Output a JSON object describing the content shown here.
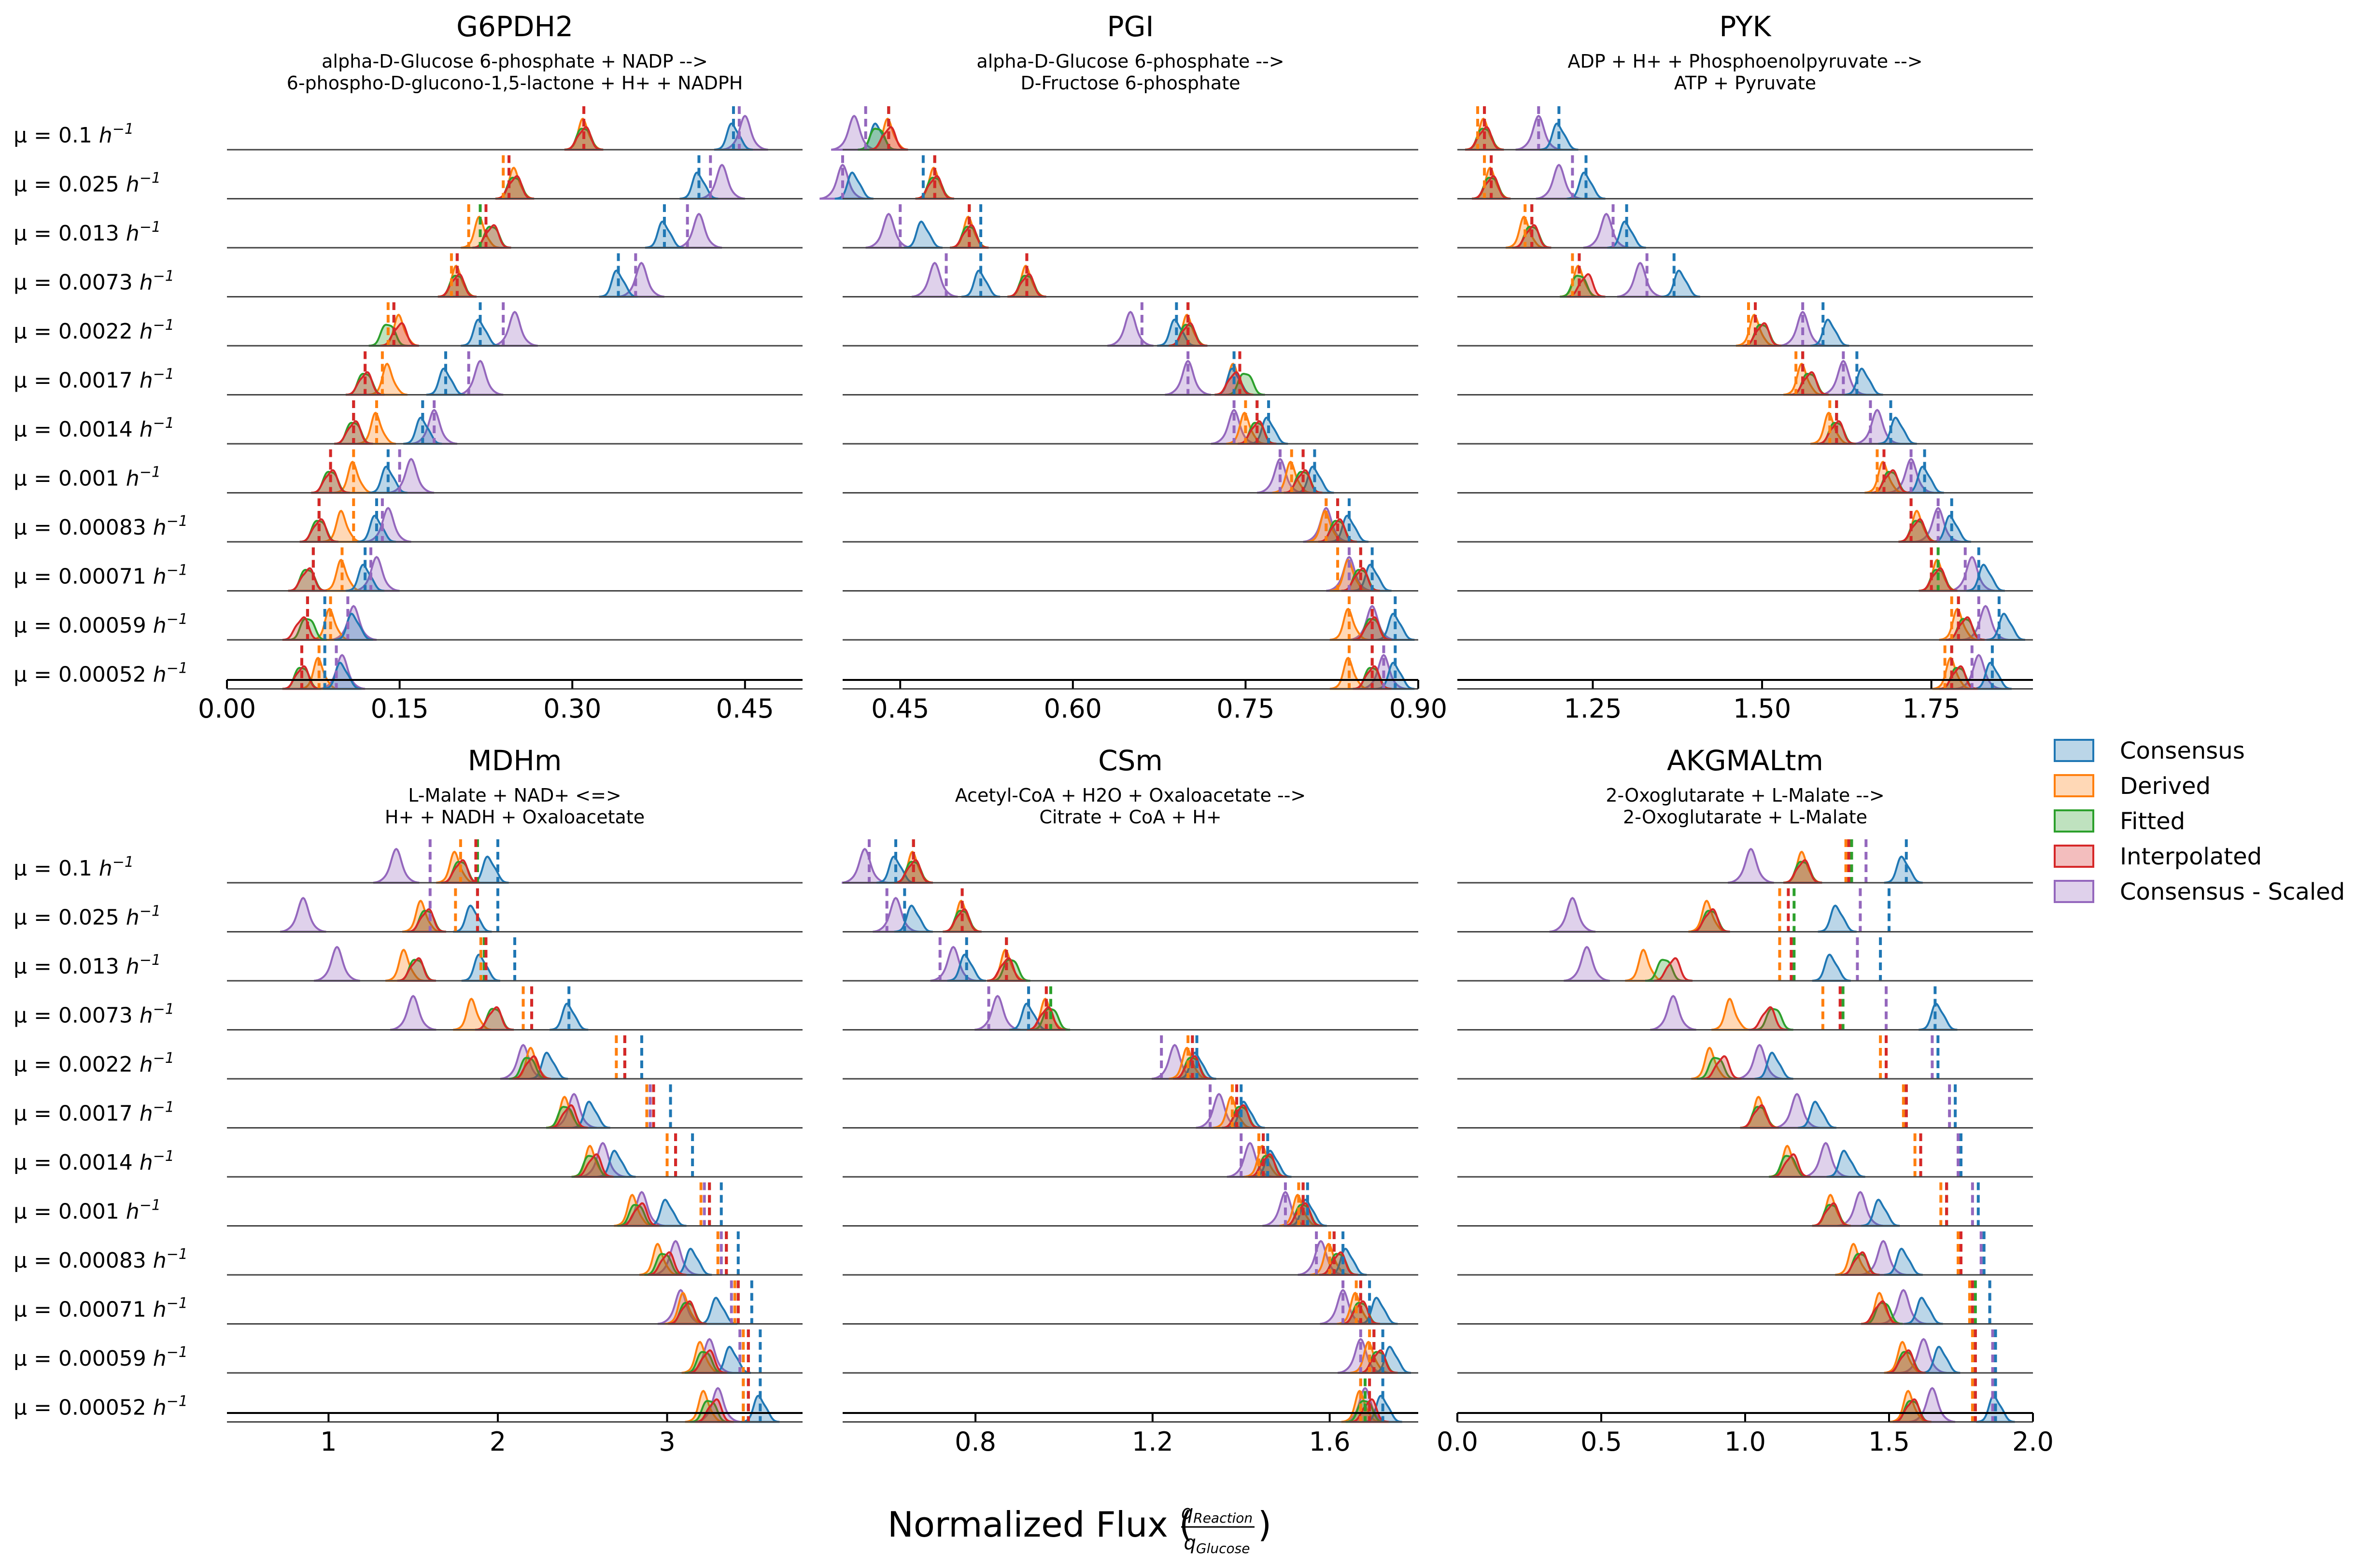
{
  "figure": {
    "xlabel": "Normalized Flux (",
    "xlabel_num": "q",
    "xlabel_num_sub": "Reaction",
    "xlabel_den": "q",
    "xlabel_den_sub": "Glucose",
    "xlabel_close": ")"
  },
  "legend": {
    "placement": "right",
    "entries": [
      {
        "name": "Consensus",
        "color": "#1f77b4"
      },
      {
        "name": "Derived",
        "color": "#ff7f0e"
      },
      {
        "name": "Fitted",
        "color": "#2ca02c"
      },
      {
        "name": "Interpolated",
        "color": "#d62728"
      },
      {
        "name": "Consensus - Scaled",
        "color": "#9467bd"
      }
    ]
  },
  "rows": [
    {
      "mu": "0.1"
    },
    {
      "mu": "0.025"
    },
    {
      "mu": "0.013"
    },
    {
      "mu": "0.0073"
    },
    {
      "mu": "0.0022"
    },
    {
      "mu": "0.0017"
    },
    {
      "mu": "0.0014"
    },
    {
      "mu": "0.001"
    },
    {
      "mu": "0.00083"
    },
    {
      "mu": "0.00071"
    },
    {
      "mu": "0.00059"
    },
    {
      "mu": "0.00052"
    }
  ],
  "row_label_prefix": "μ = ",
  "row_label_unit": "h",
  "row_label_exp": "−1",
  "chart_data": [
    {
      "type": "ridgeline-density",
      "title": "G6PDH2",
      "subtitle": [
        "alpha-D-Glucose 6-phosphate + NADP -->",
        "6-phospho-D-glucono-1,5-lactone + H+ + NADPH"
      ],
      "xlim": [
        0.0,
        0.5
      ],
      "ticks": [
        0.0,
        0.15,
        0.3,
        0.45
      ],
      "tick_labels": [
        "0.00",
        "0.15",
        "0.30",
        "0.45"
      ],
      "series_peaks": {
        "Consensus": [
          0.44,
          0.41,
          0.38,
          0.34,
          0.22,
          0.19,
          0.17,
          0.14,
          0.13,
          0.12,
          0.11,
          0.1
        ],
        "Derived": [
          0.31,
          0.25,
          0.22,
          0.2,
          0.15,
          0.14,
          0.13,
          0.11,
          0.1,
          0.1,
          0.09,
          0.08
        ],
        "Fitted": [
          0.31,
          0.25,
          0.23,
          0.2,
          0.14,
          0.12,
          0.11,
          0.09,
          0.08,
          0.07,
          0.07,
          0.065
        ],
        "Interpolated": [
          0.31,
          0.25,
          0.23,
          0.2,
          0.15,
          0.12,
          0.11,
          0.09,
          0.08,
          0.07,
          0.065,
          0.065
        ],
        "Consensus - Scaled": [
          0.45,
          0.43,
          0.41,
          0.36,
          0.25,
          0.22,
          0.18,
          0.16,
          0.14,
          0.13,
          0.11,
          0.1
        ]
      },
      "series_means": {
        "Consensus": [
          0.44,
          0.41,
          0.38,
          0.34,
          0.22,
          0.19,
          0.17,
          0.14,
          0.13,
          0.12,
          0.085,
          0.085
        ],
        "Derived": [
          0.31,
          0.24,
          0.21,
          0.195,
          0.14,
          0.135,
          0.13,
          0.11,
          0.11,
          0.1,
          0.09,
          0.08
        ],
        "Fitted": [
          0.31,
          0.245,
          0.22,
          0.2,
          0.145,
          0.12,
          0.11,
          0.09,
          0.08,
          0.075,
          0.07,
          0.065
        ],
        "Interpolated": [
          0.31,
          0.245,
          0.225,
          0.2,
          0.145,
          0.12,
          0.11,
          0.09,
          0.08,
          0.075,
          0.07,
          0.065
        ],
        "Consensus - Scaled": [
          0.445,
          0.42,
          0.4,
          0.355,
          0.24,
          0.21,
          0.18,
          0.15,
          0.135,
          0.125,
          0.105,
          0.095
        ]
      }
    },
    {
      "type": "ridgeline-density",
      "title": "PGI",
      "subtitle": [
        "alpha-D-Glucose 6-phosphate -->",
        "D-Fructose 6-phosphate"
      ],
      "xlim": [
        0.4,
        0.9
      ],
      "ticks": [
        0.45,
        0.6,
        0.75,
        0.9
      ],
      "tick_labels": [
        "0.45",
        "0.60",
        "0.75",
        "0.90"
      ],
      "series_peaks": {
        "Consensus": [
          0.43,
          0.41,
          0.47,
          0.52,
          0.69,
          0.74,
          0.77,
          0.81,
          0.84,
          0.86,
          0.88,
          0.88
        ],
        "Derived": [
          0.44,
          0.48,
          0.51,
          0.56,
          0.7,
          0.74,
          0.75,
          0.79,
          0.82,
          0.84,
          0.84,
          0.84
        ],
        "Fitted": [
          0.43,
          0.48,
          0.51,
          0.56,
          0.7,
          0.75,
          0.76,
          0.8,
          0.83,
          0.85,
          0.86,
          0.86
        ],
        "Interpolated": [
          0.44,
          0.48,
          0.51,
          0.56,
          0.7,
          0.74,
          0.76,
          0.8,
          0.83,
          0.85,
          0.86,
          0.86
        ],
        "Consensus - Scaled": [
          0.41,
          0.4,
          0.44,
          0.48,
          0.65,
          0.7,
          0.74,
          0.78,
          0.82,
          0.84,
          0.86,
          0.87
        ]
      },
      "series_means": {
        "Consensus": [
          0.44,
          0.47,
          0.52,
          0.52,
          0.69,
          0.74,
          0.77,
          0.81,
          0.84,
          0.86,
          0.88,
          0.88
        ],
        "Derived": [
          0.44,
          0.48,
          0.51,
          0.56,
          0.7,
          0.74,
          0.75,
          0.79,
          0.82,
          0.83,
          0.84,
          0.84
        ],
        "Fitted": [
          0.44,
          0.48,
          0.51,
          0.56,
          0.7,
          0.745,
          0.76,
          0.8,
          0.83,
          0.85,
          0.86,
          0.86
        ],
        "Interpolated": [
          0.44,
          0.48,
          0.51,
          0.56,
          0.7,
          0.745,
          0.76,
          0.8,
          0.83,
          0.85,
          0.86,
          0.86
        ],
        "Consensus - Scaled": [
          0.42,
          0.4,
          0.45,
          0.49,
          0.66,
          0.7,
          0.74,
          0.78,
          0.82,
          0.84,
          0.86,
          0.87
        ]
      }
    },
    {
      "type": "ridgeline-density",
      "title": "PYK",
      "subtitle": [
        "ADP + H+ + Phosphoenolpyruvate -->",
        "ATP + Pyruvate"
      ],
      "xlim": [
        1.05,
        1.9
      ],
      "ticks": [
        1.25,
        1.5,
        1.75
      ],
      "tick_labels": [
        "1.25",
        "1.50",
        "1.75"
      ],
      "series_peaks": {
        "Consensus": [
          1.2,
          1.24,
          1.3,
          1.38,
          1.6,
          1.65,
          1.7,
          1.74,
          1.78,
          1.83,
          1.86,
          1.84
        ],
        "Derived": [
          1.09,
          1.1,
          1.15,
          1.23,
          1.49,
          1.56,
          1.6,
          1.68,
          1.73,
          1.76,
          1.79,
          1.78
        ],
        "Fitted": [
          1.09,
          1.1,
          1.16,
          1.23,
          1.5,
          1.57,
          1.61,
          1.69,
          1.73,
          1.76,
          1.8,
          1.79
        ],
        "Interpolated": [
          1.09,
          1.1,
          1.16,
          1.24,
          1.5,
          1.57,
          1.61,
          1.69,
          1.73,
          1.76,
          1.8,
          1.79
        ],
        "Consensus - Scaled": [
          1.17,
          1.2,
          1.27,
          1.32,
          1.56,
          1.62,
          1.67,
          1.72,
          1.76,
          1.81,
          1.83,
          1.82
        ]
      },
      "series_means": {
        "Consensus": [
          1.2,
          1.24,
          1.3,
          1.37,
          1.59,
          1.64,
          1.69,
          1.74,
          1.78,
          1.82,
          1.85,
          1.84
        ],
        "Derived": [
          1.08,
          1.09,
          1.15,
          1.22,
          1.48,
          1.55,
          1.6,
          1.67,
          1.72,
          1.75,
          1.78,
          1.77
        ],
        "Fitted": [
          1.09,
          1.1,
          1.16,
          1.23,
          1.49,
          1.56,
          1.61,
          1.68,
          1.72,
          1.76,
          1.79,
          1.78
        ],
        "Interpolated": [
          1.09,
          1.1,
          1.16,
          1.23,
          1.49,
          1.56,
          1.61,
          1.68,
          1.72,
          1.75,
          1.79,
          1.78
        ],
        "Consensus - Scaled": [
          1.17,
          1.22,
          1.28,
          1.33,
          1.56,
          1.62,
          1.66,
          1.72,
          1.76,
          1.8,
          1.82,
          1.81
        ]
      }
    },
    {
      "type": "ridgeline-density",
      "title": "MDHm",
      "subtitle": [
        "L-Malate + NAD+ <=>",
        "H+ + NADH + Oxaloacetate"
      ],
      "xlim": [
        0.4,
        3.8
      ],
      "ticks": [
        1,
        2,
        3
      ],
      "tick_labels": [
        "1",
        "2",
        "3"
      ],
      "series_peaks": {
        "Consensus": [
          1.95,
          1.85,
          1.9,
          2.42,
          2.3,
          2.55,
          2.7,
          3.0,
          3.15,
          3.3,
          3.38,
          3.55
        ],
        "Derived": [
          1.75,
          1.55,
          1.45,
          1.85,
          2.2,
          2.4,
          2.55,
          2.8,
          2.95,
          3.1,
          3.2,
          3.22
        ],
        "Fitted": [
          1.78,
          1.58,
          1.52,
          1.98,
          2.18,
          2.4,
          2.55,
          2.82,
          2.98,
          3.12,
          3.22,
          3.25
        ],
        "Interpolated": [
          1.78,
          1.58,
          1.52,
          1.98,
          2.2,
          2.42,
          2.57,
          2.84,
          3.0,
          3.12,
          3.24,
          3.28
        ],
        "Consensus - Scaled": [
          1.4,
          0.85,
          1.05,
          1.5,
          2.15,
          2.45,
          2.62,
          2.85,
          3.05,
          3.08,
          3.25,
          3.3
        ]
      },
      "series_means": {
        "Consensus": [
          2.0,
          2.0,
          2.1,
          2.42,
          2.85,
          3.02,
          3.15,
          3.32,
          3.42,
          3.5,
          3.55,
          3.55
        ],
        "Derived": [
          1.78,
          1.75,
          1.9,
          2.15,
          2.7,
          2.88,
          3.0,
          3.2,
          3.3,
          3.4,
          3.45,
          3.45
        ],
        "Fitted": [
          1.88,
          1.88,
          1.92,
          2.2,
          2.75,
          2.92,
          3.05,
          3.25,
          3.35,
          3.42,
          3.48,
          3.48
        ],
        "Interpolated": [
          1.87,
          1.88,
          1.93,
          2.2,
          2.75,
          2.92,
          3.05,
          3.25,
          3.35,
          3.42,
          3.48,
          3.48
        ],
        "Consensus - Scaled": [
          1.6,
          1.6,
          1.9,
          2.15,
          2.75,
          2.9,
          3.05,
          3.22,
          3.32,
          3.38,
          3.43,
          3.45
        ]
      }
    },
    {
      "type": "ridgeline-density",
      "title": "CSm",
      "subtitle": [
        "Acetyl-CoA + H2O + Oxaloacetate -->",
        "Citrate + CoA + H+"
      ],
      "xlim": [
        0.5,
        1.8
      ],
      "ticks": [
        0.8,
        1.2,
        1.6
      ],
      "tick_labels": [
        "0.8",
        "1.2",
        "1.6"
      ],
      "series_peaks": {
        "Consensus": [
          0.62,
          0.66,
          0.78,
          0.92,
          1.3,
          1.41,
          1.47,
          1.55,
          1.64,
          1.71,
          1.74,
          1.72
        ],
        "Derived": [
          0.66,
          0.77,
          0.87,
          0.96,
          1.28,
          1.38,
          1.45,
          1.53,
          1.6,
          1.66,
          1.69,
          1.67
        ],
        "Fitted": [
          0.66,
          0.77,
          0.88,
          0.97,
          1.29,
          1.4,
          1.46,
          1.54,
          1.62,
          1.67,
          1.71,
          1.68
        ],
        "Interpolated": [
          0.66,
          0.77,
          0.87,
          0.96,
          1.29,
          1.4,
          1.46,
          1.54,
          1.62,
          1.67,
          1.71,
          1.69
        ],
        "Consensus - Scaled": [
          0.55,
          0.62,
          0.75,
          0.85,
          1.25,
          1.35,
          1.42,
          1.5,
          1.58,
          1.63,
          1.67,
          1.68
        ]
      },
      "series_means": {
        "Consensus": [
          0.62,
          0.64,
          0.78,
          0.92,
          1.3,
          1.4,
          1.46,
          1.55,
          1.63,
          1.69,
          1.72,
          1.72
        ],
        "Derived": [
          0.66,
          0.77,
          0.87,
          0.96,
          1.28,
          1.38,
          1.44,
          1.53,
          1.6,
          1.66,
          1.69,
          1.67
        ],
        "Fitted": [
          0.66,
          0.77,
          0.87,
          0.97,
          1.29,
          1.39,
          1.45,
          1.54,
          1.61,
          1.67,
          1.7,
          1.68
        ],
        "Interpolated": [
          0.66,
          0.77,
          0.87,
          0.96,
          1.29,
          1.39,
          1.45,
          1.54,
          1.61,
          1.67,
          1.7,
          1.69
        ],
        "Consensus - Scaled": [
          0.56,
          0.6,
          0.72,
          0.83,
          1.22,
          1.33,
          1.4,
          1.5,
          1.57,
          1.63,
          1.67,
          1.67
        ]
      }
    },
    {
      "type": "ridgeline-density",
      "title": "AKGMALtm",
      "subtitle": [
        "2-Oxoglutarate + L-Malate -->",
        "2-Oxoglutarate + L-Malate"
      ],
      "xlim": [
        0.0,
        2.0
      ],
      "ticks": [
        0.0,
        0.5,
        1.0,
        1.5,
        2.0
      ],
      "tick_labels": [
        "0.0",
        "0.5",
        "1.0",
        "1.5",
        "2.0"
      ],
      "series_peaks": {
        "Consensus": [
          1.55,
          1.32,
          1.3,
          1.67,
          1.1,
          1.25,
          1.35,
          1.47,
          1.55,
          1.62,
          1.68,
          1.87
        ],
        "Derived": [
          1.2,
          0.87,
          0.65,
          0.95,
          0.88,
          1.05,
          1.15,
          1.3,
          1.38,
          1.47,
          1.55,
          1.57
        ],
        "Fitted": [
          1.2,
          0.88,
          0.72,
          1.1,
          0.9,
          1.05,
          1.15,
          1.3,
          1.4,
          1.48,
          1.56,
          1.58
        ],
        "Interpolated": [
          1.2,
          0.88,
          0.75,
          1.08,
          0.92,
          1.05,
          1.16,
          1.3,
          1.4,
          1.47,
          1.56,
          1.58
        ],
        "Consensus - Scaled": [
          1.02,
          0.4,
          0.45,
          0.75,
          1.05,
          1.18,
          1.28,
          1.4,
          1.48,
          1.55,
          1.62,
          1.65
        ]
      },
      "series_means": {
        "Consensus": [
          1.56,
          1.5,
          1.47,
          1.66,
          1.67,
          1.73,
          1.75,
          1.81,
          1.83,
          1.85,
          1.87,
          1.87
        ],
        "Derived": [
          1.35,
          1.12,
          1.12,
          1.27,
          1.47,
          1.55,
          1.59,
          1.68,
          1.74,
          1.78,
          1.79,
          1.79
        ],
        "Fitted": [
          1.37,
          1.17,
          1.17,
          1.34,
          1.49,
          1.56,
          1.61,
          1.7,
          1.75,
          1.8,
          1.8,
          1.8
        ],
        "Interpolated": [
          1.36,
          1.15,
          1.16,
          1.33,
          1.49,
          1.56,
          1.61,
          1.7,
          1.75,
          1.79,
          1.8,
          1.8
        ],
        "Consensus - Scaled": [
          1.42,
          1.4,
          1.39,
          1.49,
          1.65,
          1.71,
          1.74,
          1.79,
          1.82,
          1.85,
          1.86,
          1.86
        ]
      }
    }
  ]
}
